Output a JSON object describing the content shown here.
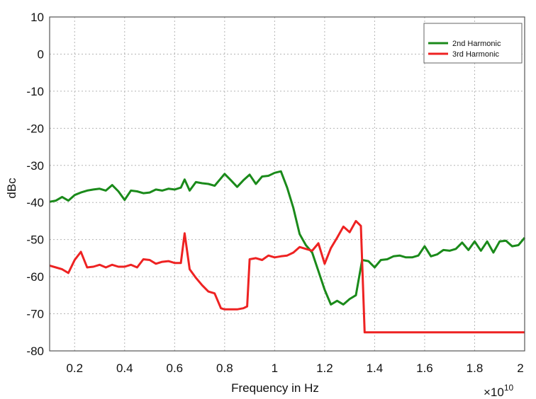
{
  "chart_data": {
    "type": "line",
    "xlabel": "Frequency in Hz",
    "ylabel": "dBc",
    "x_exponent_label": "×10",
    "x_exponent_power": "10",
    "xlim": [
      0.1,
      2.0
    ],
    "ylim": [
      -80,
      10
    ],
    "x_ticks": [
      0.2,
      0.4,
      0.6,
      0.8,
      1.0,
      1.2,
      1.4,
      1.6,
      1.8,
      2.0
    ],
    "x_tick_labels": [
      "0.2",
      "0.4",
      "0.6",
      "0.8",
      "1",
      "1.2",
      "1.4",
      "1.6",
      "1.8",
      "2"
    ],
    "y_ticks": [
      10,
      0,
      -10,
      -20,
      -30,
      -40,
      -50,
      -60,
      -70,
      -80
    ],
    "y_tick_labels": [
      "10",
      "0",
      "-10",
      "-20",
      "-30",
      "-40",
      "-50",
      "-60",
      "-70",
      "-80"
    ],
    "grid": true,
    "legend_position": "top-right",
    "series": [
      {
        "name": "2nd Harmonic",
        "color": "#1a8a1a",
        "x": [
          0.1,
          0.125,
          0.15,
          0.175,
          0.2,
          0.225,
          0.25,
          0.275,
          0.3,
          0.325,
          0.35,
          0.375,
          0.4,
          0.425,
          0.45,
          0.475,
          0.5,
          0.525,
          0.55,
          0.575,
          0.6,
          0.625,
          0.64,
          0.66,
          0.685,
          0.71,
          0.735,
          0.76,
          0.8,
          0.825,
          0.85,
          0.875,
          0.9,
          0.925,
          0.95,
          0.975,
          1.0,
          1.025,
          1.05,
          1.075,
          1.1,
          1.125,
          1.15,
          1.175,
          1.2,
          1.225,
          1.25,
          1.275,
          1.3,
          1.325,
          1.35,
          1.375,
          1.4,
          1.425,
          1.45,
          1.475,
          1.5,
          1.525,
          1.55,
          1.575,
          1.6,
          1.625,
          1.65,
          1.675,
          1.7,
          1.725,
          1.75,
          1.775,
          1.8,
          1.825,
          1.85,
          1.875,
          1.9,
          1.925,
          1.95,
          1.975,
          2.0
        ],
        "y": [
          -39.8,
          -39.5,
          -38.5,
          -39.5,
          -38.0,
          -37.3,
          -36.8,
          -36.5,
          -36.3,
          -36.8,
          -35.3,
          -37.0,
          -39.3,
          -36.8,
          -37.0,
          -37.5,
          -37.3,
          -36.5,
          -36.8,
          -36.3,
          -36.5,
          -36.0,
          -33.8,
          -36.8,
          -34.5,
          -34.8,
          -35.0,
          -35.5,
          -32.3,
          -34.0,
          -35.8,
          -34.0,
          -32.5,
          -35.0,
          -33.0,
          -32.8,
          -32.0,
          -31.6,
          -36.0,
          -41.5,
          -48.5,
          -51.5,
          -53.5,
          -58.5,
          -63.5,
          -67.5,
          -66.5,
          -67.5,
          -66.0,
          -65.0,
          -55.5,
          -55.8,
          -57.5,
          -55.5,
          -55.3,
          -54.5,
          -54.3,
          -54.8,
          -54.8,
          -54.3,
          -51.8,
          -54.5,
          -54.0,
          -52.8,
          -53.0,
          -52.5,
          -50.8,
          -52.8,
          -50.5,
          -53.0,
          -50.5,
          -53.5,
          -50.5,
          -50.3,
          -51.8,
          -51.5,
          -49.5
        ]
      },
      {
        "name": "3rd Harmonic",
        "color": "#ee2222",
        "x": [
          0.1,
          0.125,
          0.15,
          0.175,
          0.2,
          0.225,
          0.25,
          0.275,
          0.3,
          0.325,
          0.35,
          0.375,
          0.4,
          0.425,
          0.45,
          0.475,
          0.5,
          0.525,
          0.55,
          0.575,
          0.6,
          0.625,
          0.64,
          0.66,
          0.685,
          0.71,
          0.735,
          0.76,
          0.785,
          0.8,
          0.825,
          0.85,
          0.875,
          0.89,
          0.9,
          0.925,
          0.95,
          0.975,
          1.0,
          1.025,
          1.05,
          1.075,
          1.1,
          1.125,
          1.15,
          1.175,
          1.2,
          1.225,
          1.25,
          1.275,
          1.3,
          1.325,
          1.345,
          1.36,
          1.375,
          1.4,
          1.5,
          1.6,
          1.7,
          1.8,
          1.9,
          2.0
        ],
        "y": [
          -57.0,
          -57.5,
          -58.0,
          -59.0,
          -55.5,
          -53.3,
          -57.5,
          -57.3,
          -56.8,
          -57.5,
          -56.8,
          -57.3,
          -57.3,
          -56.8,
          -57.5,
          -55.3,
          -55.5,
          -56.5,
          -56.0,
          -55.8,
          -56.3,
          -56.3,
          -48.3,
          -58.0,
          -60.3,
          -62.3,
          -64.0,
          -64.5,
          -68.5,
          -68.8,
          -68.8,
          -68.8,
          -68.5,
          -68.0,
          -55.3,
          -55.0,
          -55.5,
          -54.3,
          -54.8,
          -54.5,
          -54.3,
          -53.5,
          -52.0,
          -52.5,
          -53.0,
          -51.0,
          -56.5,
          -52.3,
          -49.5,
          -46.5,
          -48.0,
          -45.0,
          -46.3,
          -75.0,
          -75.0,
          -75.0,
          -75.0,
          -75.0,
          -75.0,
          -75.0,
          -75.0,
          -75.0
        ]
      }
    ]
  }
}
